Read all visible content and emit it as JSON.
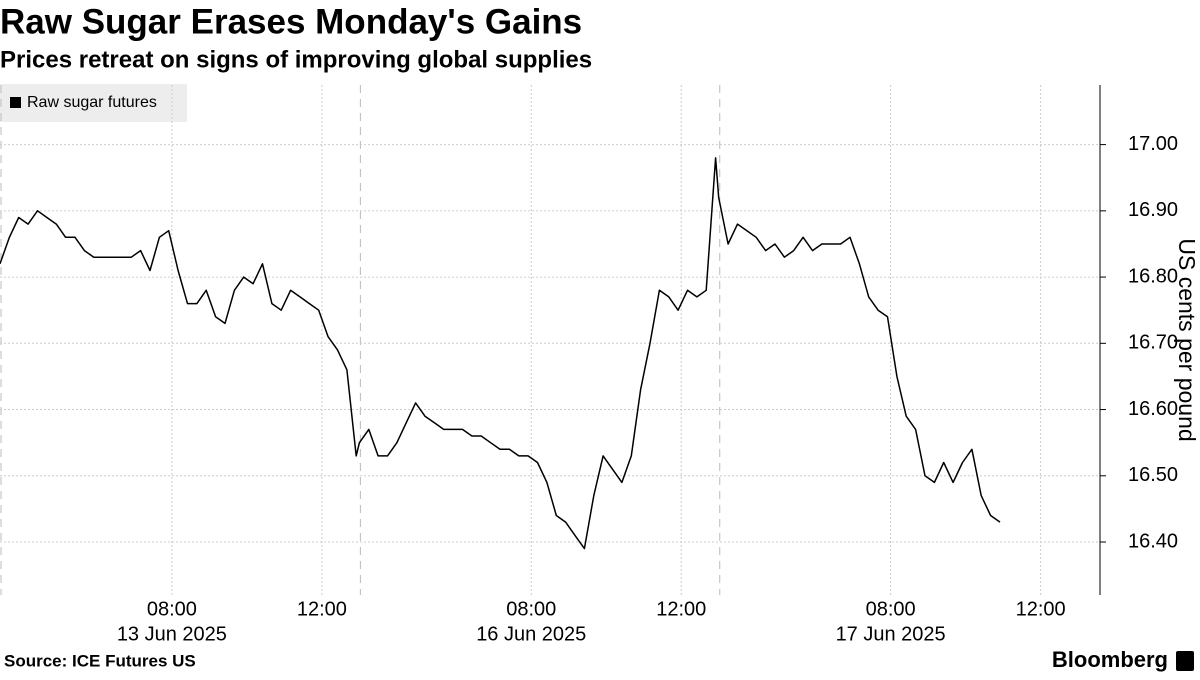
{
  "chart_data": {
    "type": "line",
    "title": "Raw Sugar Erases Monday's Gains",
    "subtitle": "Prices retreat on signs of improving global supplies",
    "y_label": "US cents per pound",
    "source": "Source: ICE Futures US",
    "brand": "Bloomberg",
    "legend": "top-left",
    "grid": true,
    "x": [
      "2025-06-13 03:25",
      "2025-06-13 03:40",
      "2025-06-13 03:55",
      "2025-06-13 04:10",
      "2025-06-13 04:25",
      "2025-06-13 04:40",
      "2025-06-13 04:55",
      "2025-06-13 05:10",
      "2025-06-13 05:25",
      "2025-06-13 05:40",
      "2025-06-13 05:55",
      "2025-06-13 06:10",
      "2025-06-13 06:25",
      "2025-06-13 06:40",
      "2025-06-13 06:55",
      "2025-06-13 07:10",
      "2025-06-13 07:25",
      "2025-06-13 07:40",
      "2025-06-13 07:55",
      "2025-06-13 08:10",
      "2025-06-13 08:25",
      "2025-06-13 08:40",
      "2025-06-13 08:55",
      "2025-06-13 09:10",
      "2025-06-13 09:25",
      "2025-06-13 09:40",
      "2025-06-13 09:55",
      "2025-06-13 10:10",
      "2025-06-13 10:25",
      "2025-06-13 10:40",
      "2025-06-13 10:55",
      "2025-06-13 11:10",
      "2025-06-13 11:25",
      "2025-06-13 11:40",
      "2025-06-13 11:55",
      "2025-06-13 12:10",
      "2025-06-13 12:25",
      "2025-06-13 12:40",
      "2025-06-13 12:55",
      "2025-06-16 03:25",
      "2025-06-16 03:40",
      "2025-06-16 03:55",
      "2025-06-16 04:10",
      "2025-06-16 04:25",
      "2025-06-16 04:40",
      "2025-06-16 04:55",
      "2025-06-16 05:10",
      "2025-06-16 05:25",
      "2025-06-16 05:40",
      "2025-06-16 05:55",
      "2025-06-16 06:10",
      "2025-06-16 06:25",
      "2025-06-16 06:40",
      "2025-06-16 06:55",
      "2025-06-16 07:10",
      "2025-06-16 07:25",
      "2025-06-16 07:40",
      "2025-06-16 07:55",
      "2025-06-16 08:10",
      "2025-06-16 08:25",
      "2025-06-16 08:40",
      "2025-06-16 08:55",
      "2025-06-16 09:10",
      "2025-06-16 09:25",
      "2025-06-16 09:40",
      "2025-06-16 09:55",
      "2025-06-16 10:10",
      "2025-06-16 10:25",
      "2025-06-16 10:40",
      "2025-06-16 10:55",
      "2025-06-16 11:10",
      "2025-06-16 11:25",
      "2025-06-16 11:40",
      "2025-06-16 11:55",
      "2025-06-16 12:10",
      "2025-06-16 12:25",
      "2025-06-16 12:40",
      "2025-06-16 12:55",
      "2025-06-17 03:25",
      "2025-06-17 03:40",
      "2025-06-17 03:55",
      "2025-06-17 04:10",
      "2025-06-17 04:25",
      "2025-06-17 04:40",
      "2025-06-17 04:55",
      "2025-06-17 05:10",
      "2025-06-17 05:25",
      "2025-06-17 05:40",
      "2025-06-17 05:55",
      "2025-06-17 06:10",
      "2025-06-17 06:25",
      "2025-06-17 06:40",
      "2025-06-17 06:55",
      "2025-06-17 07:10",
      "2025-06-17 07:25",
      "2025-06-17 07:40",
      "2025-06-17 07:55",
      "2025-06-17 08:10",
      "2025-06-17 08:25",
      "2025-06-17 08:40",
      "2025-06-17 08:55",
      "2025-06-17 09:10",
      "2025-06-17 09:25",
      "2025-06-17 09:40",
      "2025-06-17 09:55",
      "2025-06-17 10:10",
      "2025-06-17 10:25",
      "2025-06-17 10:40",
      "2025-06-17 10:55"
    ],
    "series": [
      {
        "name": "Raw sugar futures",
        "color": "#000000",
        "values": [
          16.82,
          16.86,
          16.89,
          16.88,
          16.9,
          16.89,
          16.88,
          16.86,
          16.86,
          16.84,
          16.83,
          16.83,
          16.83,
          16.83,
          16.83,
          16.84,
          16.81,
          16.86,
          16.87,
          16.81,
          16.76,
          16.76,
          16.78,
          16.74,
          16.73,
          16.78,
          16.8,
          16.79,
          16.82,
          16.76,
          16.75,
          16.78,
          16.77,
          16.76,
          16.75,
          16.71,
          16.69,
          16.66,
          16.53,
          16.55,
          16.57,
          16.53,
          16.53,
          16.55,
          16.58,
          16.61,
          16.59,
          16.58,
          16.57,
          16.57,
          16.57,
          16.56,
          16.56,
          16.55,
          16.54,
          16.54,
          16.53,
          16.53,
          16.52,
          16.49,
          16.44,
          16.43,
          16.41,
          16.39,
          16.47,
          16.53,
          16.51,
          16.49,
          16.53,
          16.63,
          16.7,
          16.78,
          16.77,
          16.75,
          16.78,
          16.77,
          16.78,
          16.98,
          16.92,
          16.85,
          16.88,
          16.87,
          16.86,
          16.84,
          16.85,
          16.83,
          16.84,
          16.86,
          16.84,
          16.85,
          16.85,
          16.85,
          16.86,
          16.82,
          16.77,
          16.75,
          16.74,
          16.65,
          16.59,
          16.57,
          16.5,
          16.49,
          16.52,
          16.49,
          16.52,
          16.54,
          16.47,
          16.44,
          16.43
        ]
      }
    ],
    "xlim": [
      "2025-06-13 03:25",
      "2025-06-17 13:35"
    ],
    "xticks": [
      {
        "value": "2025-06-13 08:00",
        "label": "08:00"
      },
      {
        "value": "2025-06-13 12:00",
        "label": "12:00"
      },
      {
        "value": "2025-06-16 08:00",
        "label": "08:00"
      },
      {
        "value": "2025-06-16 12:00",
        "label": "12:00"
      },
      {
        "value": "2025-06-17 08:00",
        "label": "08:00"
      },
      {
        "value": "2025-06-17 12:00",
        "label": "12:00"
      }
    ],
    "x_date_labels": [
      {
        "value": "2025-06-13 08:00",
        "label": "13 Jun 2025"
      },
      {
        "value": "2025-06-16 08:00",
        "label": "16 Jun 2025"
      },
      {
        "value": "2025-06-17 08:00",
        "label": "17 Jun 2025"
      }
    ],
    "ylim": [
      16.32,
      17.09
    ],
    "yticks": [
      {
        "value": 16.4,
        "label": "16.40"
      },
      {
        "value": 16.5,
        "label": "16.50"
      },
      {
        "value": 16.6,
        "label": "16.60"
      },
      {
        "value": 16.7,
        "label": "16.70"
      },
      {
        "value": 16.8,
        "label": "16.80"
      },
      {
        "value": 16.9,
        "label": "16.90"
      },
      {
        "value": 17,
        "label": "17.00"
      }
    ]
  }
}
